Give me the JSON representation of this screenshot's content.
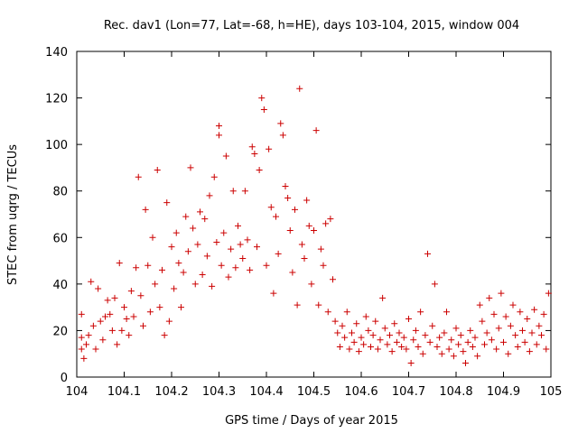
{
  "chart_data": {
    "type": "scatter",
    "title": "Rec. dav1 (Lon=77, Lat=-68, h=HE), days 103-104, 2015, window 004",
    "xlabel": "GPS time / Days of year 2015",
    "ylabel": "STEC from uqrg / TECUs",
    "xlim": [
      104,
      105
    ],
    "ylim": [
      0,
      140
    ],
    "x_ticks": [
      "104",
      "104.1",
      "104.2",
      "104.3",
      "104.4",
      "104.5",
      "104.6",
      "104.7",
      "104.8",
      "104.9",
      "105"
    ],
    "y_ticks": [
      "0",
      "20",
      "40",
      "60",
      "80",
      "100",
      "120",
      "140"
    ],
    "grid": false,
    "marker": "+",
    "color": "#cc0000",
    "series": [
      {
        "points": [
          [
            104.01,
            27
          ],
          [
            104.01,
            17
          ],
          [
            104.01,
            12
          ],
          [
            104.015,
            8
          ],
          [
            104.02,
            14
          ],
          [
            104.025,
            18
          ],
          [
            104.03,
            41
          ],
          [
            104.035,
            22
          ],
          [
            104.04,
            12
          ],
          [
            104.045,
            38
          ],
          [
            104.05,
            24
          ],
          [
            104.055,
            16
          ],
          [
            104.06,
            26
          ],
          [
            104.065,
            33
          ],
          [
            104.07,
            27
          ],
          [
            104.075,
            20
          ],
          [
            104.08,
            34
          ],
          [
            104.085,
            14
          ],
          [
            104.09,
            49
          ],
          [
            104.095,
            20
          ],
          [
            104.1,
            30
          ],
          [
            104.105,
            25
          ],
          [
            104.11,
            18
          ],
          [
            104.115,
            37
          ],
          [
            104.12,
            26
          ],
          [
            104.125,
            47
          ],
          [
            104.13,
            86
          ],
          [
            104.135,
            35
          ],
          [
            104.14,
            22
          ],
          [
            104.145,
            72
          ],
          [
            104.15,
            48
          ],
          [
            104.155,
            28
          ],
          [
            104.16,
            60
          ],
          [
            104.165,
            40
          ],
          [
            104.17,
            89
          ],
          [
            104.175,
            30
          ],
          [
            104.18,
            46
          ],
          [
            104.185,
            18
          ],
          [
            104.19,
            75
          ],
          [
            104.195,
            24
          ],
          [
            104.2,
            56
          ],
          [
            104.205,
            38
          ],
          [
            104.21,
            62
          ],
          [
            104.215,
            49
          ],
          [
            104.22,
            30
          ],
          [
            104.225,
            45
          ],
          [
            104.23,
            69
          ],
          [
            104.235,
            54
          ],
          [
            104.24,
            90
          ],
          [
            104.245,
            64
          ],
          [
            104.25,
            40
          ],
          [
            104.255,
            57
          ],
          [
            104.26,
            71
          ],
          [
            104.265,
            44
          ],
          [
            104.27,
            68
          ],
          [
            104.275,
            52
          ],
          [
            104.28,
            78
          ],
          [
            104.285,
            39
          ],
          [
            104.29,
            86
          ],
          [
            104.295,
            58
          ],
          [
            104.3,
            108
          ],
          [
            104.3,
            104
          ],
          [
            104.305,
            48
          ],
          [
            104.31,
            62
          ],
          [
            104.315,
            95
          ],
          [
            104.32,
            43
          ],
          [
            104.325,
            55
          ],
          [
            104.33,
            80
          ],
          [
            104.335,
            47
          ],
          [
            104.34,
            65
          ],
          [
            104.345,
            57
          ],
          [
            104.35,
            51
          ],
          [
            104.355,
            80
          ],
          [
            104.36,
            59
          ],
          [
            104.365,
            46
          ],
          [
            104.37,
            99
          ],
          [
            104.375,
            96
          ],
          [
            104.38,
            56
          ],
          [
            104.385,
            89
          ],
          [
            104.39,
            120
          ],
          [
            104.395,
            115
          ],
          [
            104.4,
            48
          ],
          [
            104.405,
            98
          ],
          [
            104.41,
            73
          ],
          [
            104.415,
            36
          ],
          [
            104.42,
            69
          ],
          [
            104.425,
            53
          ],
          [
            104.43,
            109
          ],
          [
            104.435,
            104
          ],
          [
            104.44,
            82
          ],
          [
            104.445,
            77
          ],
          [
            104.45,
            63
          ],
          [
            104.455,
            45
          ],
          [
            104.46,
            72
          ],
          [
            104.465,
            31
          ],
          [
            104.47,
            124
          ],
          [
            104.475,
            57
          ],
          [
            104.48,
            51
          ],
          [
            104.485,
            76
          ],
          [
            104.49,
            65
          ],
          [
            104.495,
            40
          ],
          [
            104.5,
            63
          ],
          [
            104.505,
            106
          ],
          [
            104.51,
            31
          ],
          [
            104.515,
            55
          ],
          [
            104.52,
            48
          ],
          [
            104.525,
            66
          ],
          [
            104.53,
            28
          ],
          [
            104.535,
            68
          ],
          [
            104.54,
            42
          ],
          [
            104.545,
            24
          ],
          [
            104.55,
            19
          ],
          [
            104.555,
            13
          ],
          [
            104.56,
            22
          ],
          [
            104.565,
            17
          ],
          [
            104.57,
            28
          ],
          [
            104.575,
            12
          ],
          [
            104.58,
            19
          ],
          [
            104.585,
            15
          ],
          [
            104.59,
            23
          ],
          [
            104.595,
            11
          ],
          [
            104.6,
            17
          ],
          [
            104.605,
            14
          ],
          [
            104.61,
            26
          ],
          [
            104.615,
            20
          ],
          [
            104.62,
            13
          ],
          [
            104.625,
            18
          ],
          [
            104.63,
            24
          ],
          [
            104.635,
            12
          ],
          [
            104.64,
            16
          ],
          [
            104.645,
            34
          ],
          [
            104.65,
            21
          ],
          [
            104.655,
            14
          ],
          [
            104.66,
            18
          ],
          [
            104.665,
            11
          ],
          [
            104.67,
            23
          ],
          [
            104.675,
            15
          ],
          [
            104.68,
            19
          ],
          [
            104.685,
            13
          ],
          [
            104.69,
            17
          ],
          [
            104.695,
            12
          ],
          [
            104.7,
            25
          ],
          [
            104.705,
            6
          ],
          [
            104.71,
            16
          ],
          [
            104.715,
            20
          ],
          [
            104.72,
            13
          ],
          [
            104.725,
            28
          ],
          [
            104.73,
            10
          ],
          [
            104.735,
            18
          ],
          [
            104.74,
            53
          ],
          [
            104.745,
            15
          ],
          [
            104.75,
            22
          ],
          [
            104.755,
            40
          ],
          [
            104.76,
            13
          ],
          [
            104.765,
            17
          ],
          [
            104.77,
            10
          ],
          [
            104.775,
            19
          ],
          [
            104.78,
            28
          ],
          [
            104.785,
            12
          ],
          [
            104.79,
            16
          ],
          [
            104.795,
            9
          ],
          [
            104.8,
            21
          ],
          [
            104.805,
            14
          ],
          [
            104.81,
            18
          ],
          [
            104.815,
            11
          ],
          [
            104.82,
            6
          ],
          [
            104.825,
            15
          ],
          [
            104.83,
            20
          ],
          [
            104.835,
            13
          ],
          [
            104.84,
            17
          ],
          [
            104.845,
            9
          ],
          [
            104.85,
            31
          ],
          [
            104.855,
            24
          ],
          [
            104.86,
            14
          ],
          [
            104.865,
            19
          ],
          [
            104.87,
            34
          ],
          [
            104.875,
            16
          ],
          [
            104.88,
            27
          ],
          [
            104.885,
            12
          ],
          [
            104.89,
            21
          ],
          [
            104.895,
            36
          ],
          [
            104.9,
            15
          ],
          [
            104.905,
            26
          ],
          [
            104.91,
            10
          ],
          [
            104.915,
            22
          ],
          [
            104.92,
            31
          ],
          [
            104.925,
            18
          ],
          [
            104.93,
            13
          ],
          [
            104.935,
            28
          ],
          [
            104.94,
            20
          ],
          [
            104.945,
            15
          ],
          [
            104.95,
            25
          ],
          [
            104.955,
            11
          ],
          [
            104.96,
            19
          ],
          [
            104.965,
            29
          ],
          [
            104.97,
            14
          ],
          [
            104.975,
            22
          ],
          [
            104.98,
            18
          ],
          [
            104.985,
            27
          ],
          [
            104.99,
            12
          ],
          [
            104.995,
            36
          ]
        ]
      }
    ]
  }
}
